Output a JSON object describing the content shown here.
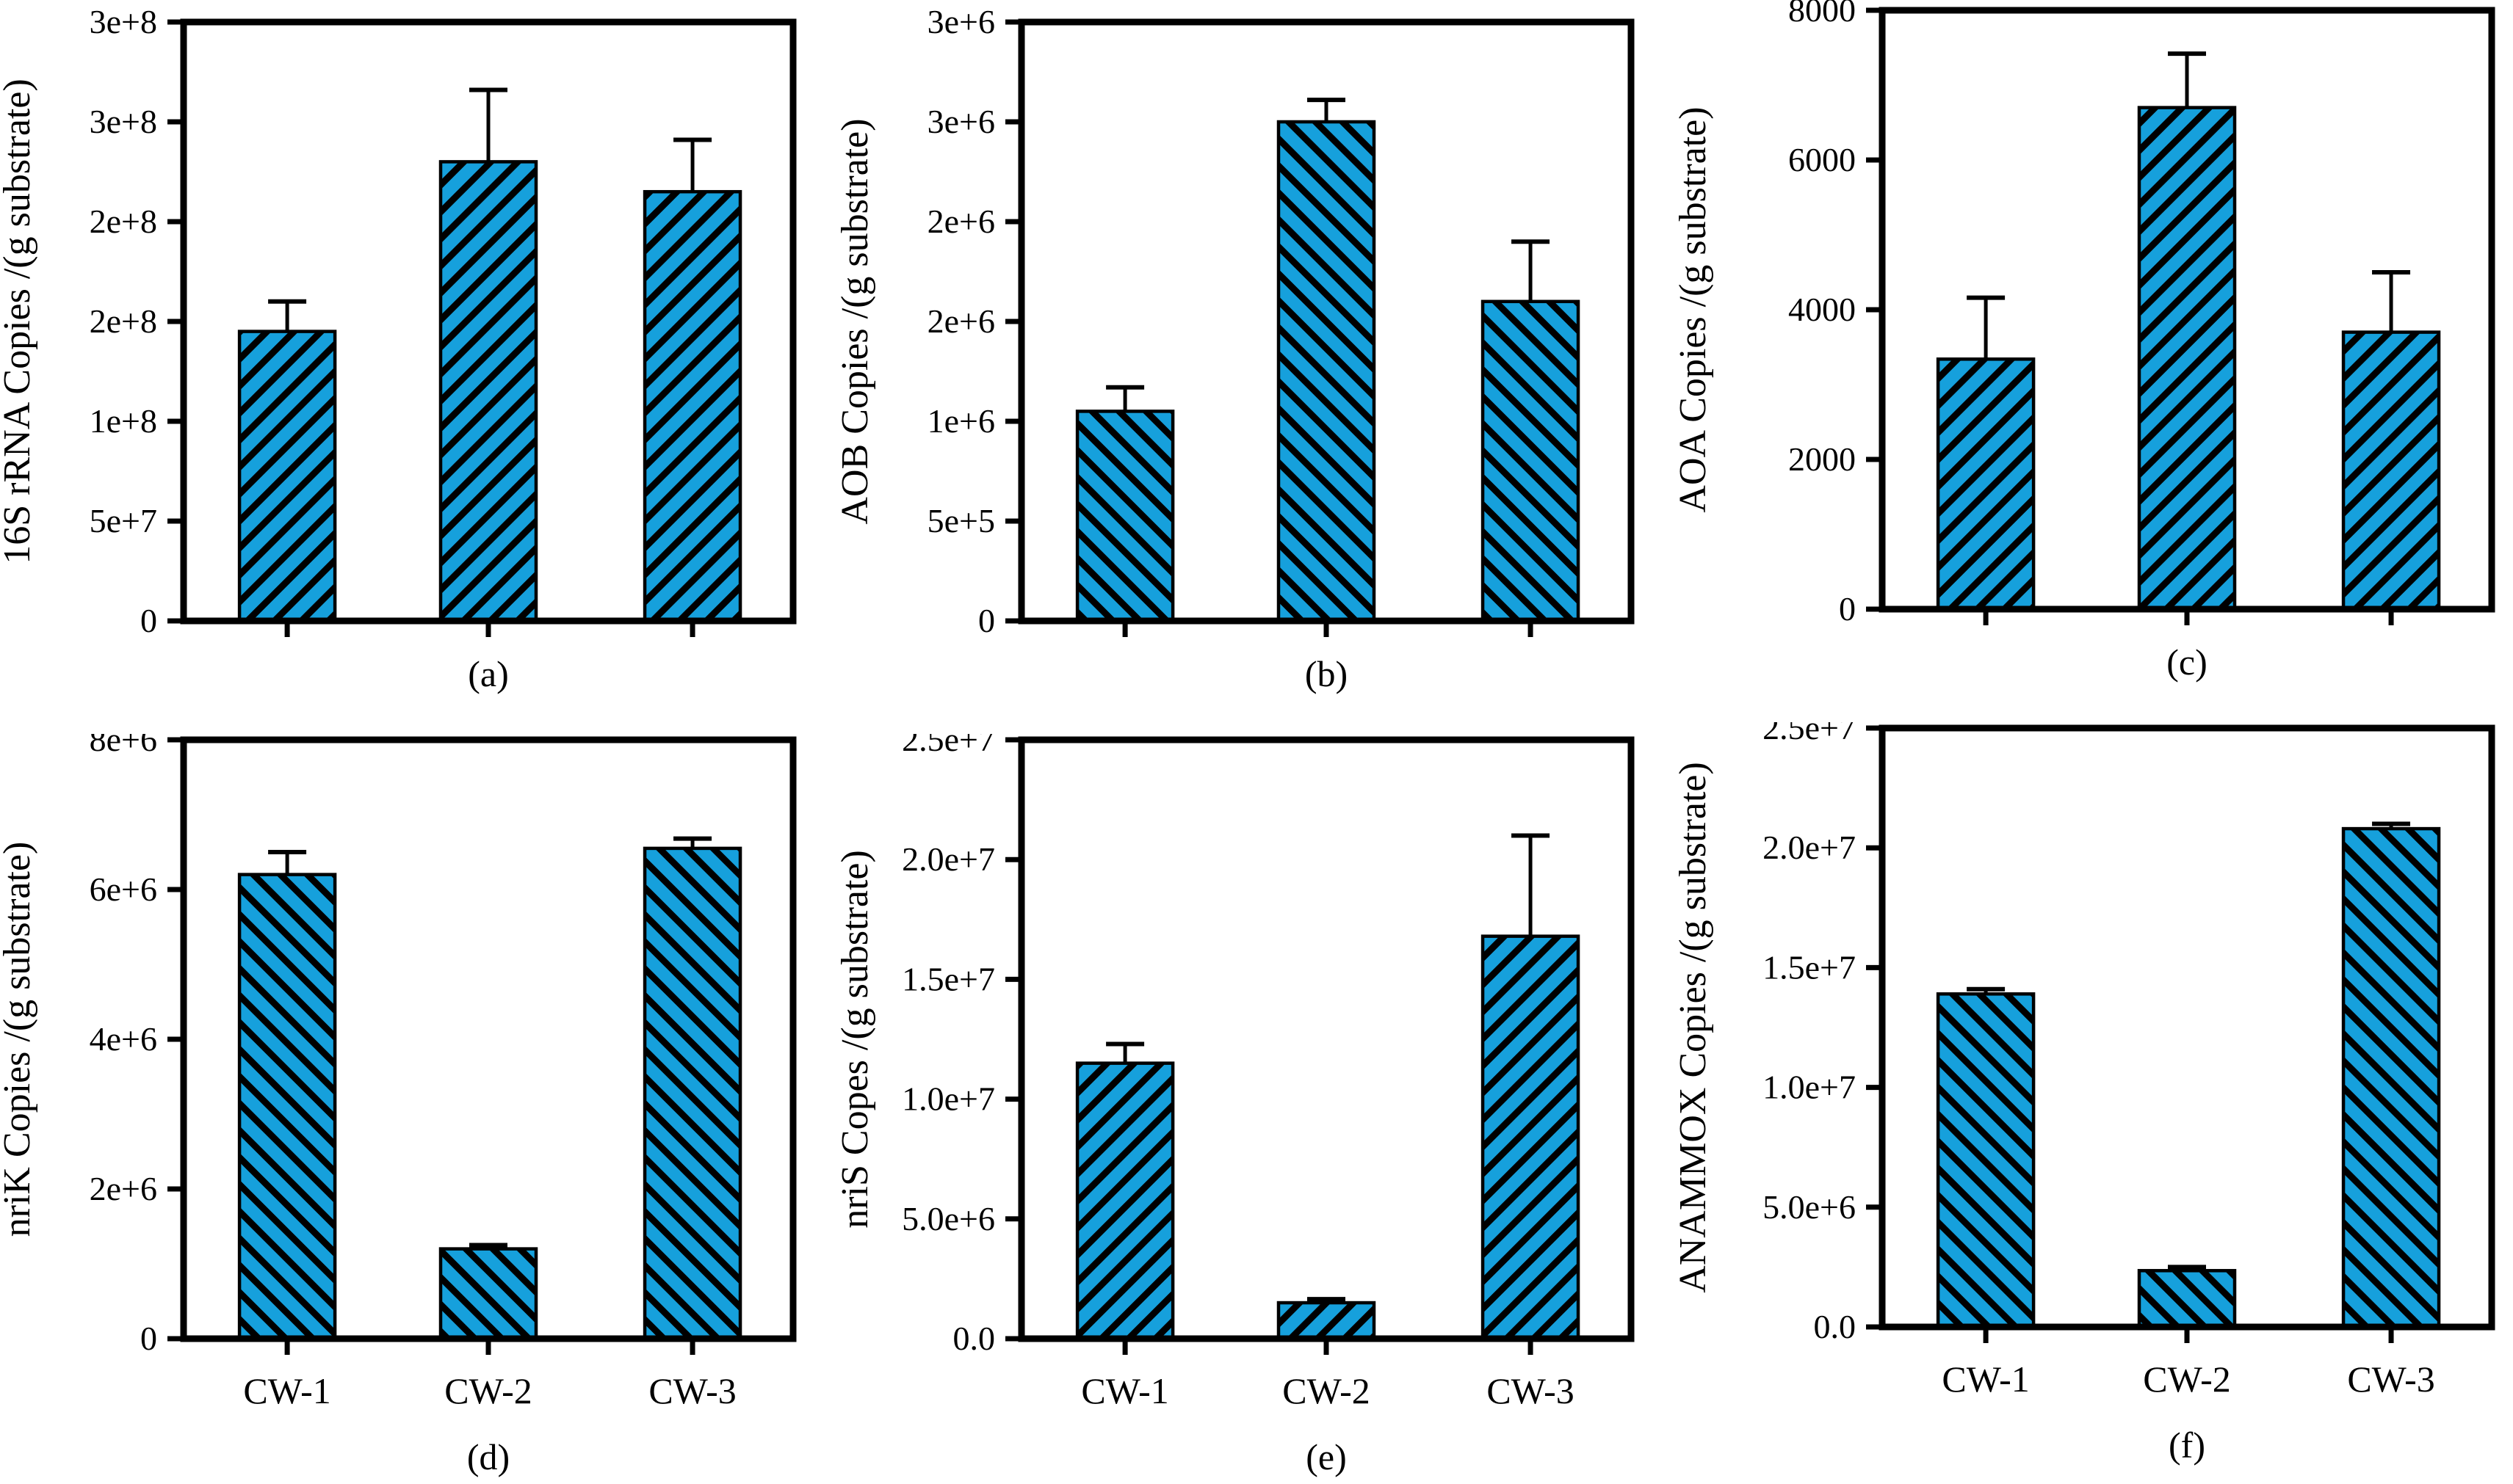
{
  "figure": {
    "description": "Six-panel bar figure of gene copy numbers per gram substrate in three constructed wetlands",
    "categories": [
      "CW-1",
      "CW-2",
      "CW-3"
    ]
  },
  "colors": {
    "bar_fill": "#16a0dc",
    "hatch_line": "#000000",
    "axis": "#000000",
    "background": "#ffffff"
  },
  "chart_data": [
    {
      "type": "bar",
      "panel_label": "(a)",
      "ylabel": "16S rRNA Copies /(g substrate)",
      "categories": [
        "CW-1",
        "CW-2",
        "CW-3"
      ],
      "show_category_labels": false,
      "values": [
        145000000.0,
        230000000.0,
        215000000.0
      ],
      "errors_plus": [
        15000000.0,
        36000000.0,
        26000000.0
      ],
      "ylim": [
        0,
        300000000.0
      ],
      "yticks": [
        0,
        50000000.0,
        100000000.0,
        150000000.0,
        200000000.0,
        250000000.0,
        300000000.0
      ],
      "ytick_labels": [
        "0",
        "5e+7",
        "1e+8",
        "2e+8",
        "2e+8",
        "3e+8",
        "3e+8"
      ],
      "hatch": "/",
      "grid": false,
      "legend": false
    },
    {
      "type": "bar",
      "panel_label": "(b)",
      "ylabel": "AOB Copies /(g substrate)",
      "categories": [
        "CW-1",
        "CW-2",
        "CW-3"
      ],
      "show_category_labels": false,
      "values": [
        1050000.0,
        2500000.0,
        1600000.0
      ],
      "errors_plus": [
        120000.0,
        110000.0,
        300000.0
      ],
      "ylim": [
        0,
        3000000.0
      ],
      "yticks": [
        0,
        500000.0,
        1000000.0,
        1500000.0,
        2000000.0,
        2500000.0,
        3000000.0
      ],
      "ytick_labels": [
        "0",
        "5e+5",
        "1e+6",
        "2e+6",
        "2e+6",
        "3e+6",
        "3e+6"
      ],
      "hatch": "\\",
      "grid": false,
      "legend": false
    },
    {
      "type": "bar",
      "panel_label": "(c)",
      "ylabel": "AOA Copies /(g substrate)",
      "categories": [
        "CW-1",
        "CW-2",
        "CW-3"
      ],
      "show_category_labels": false,
      "values": [
        3340,
        6700,
        3700
      ],
      "errors_plus": [
        820,
        720,
        800
      ],
      "ylim": [
        0,
        8000
      ],
      "yticks": [
        0,
        2000,
        4000,
        6000,
        8000
      ],
      "ytick_labels": [
        "0",
        "2000",
        "4000",
        "6000",
        "8000"
      ],
      "hatch": "/",
      "grid": false,
      "legend": false
    },
    {
      "type": "bar",
      "panel_label": "(d)",
      "ylabel": "nriK Copies /(g substrate)",
      "categories": [
        "CW-1",
        "CW-2",
        "CW-3"
      ],
      "show_category_labels": true,
      "values": [
        6200000.0,
        1200000.0,
        6550000.0
      ],
      "errors_plus": [
        300000.0,
        50000.0,
        130000.0
      ],
      "ylim": [
        0,
        8000000.0
      ],
      "yticks": [
        0,
        2000000.0,
        4000000.0,
        6000000.0,
        8000000.0
      ],
      "ytick_labels": [
        "0",
        "2e+6",
        "4e+6",
        "6e+6",
        "8e+6"
      ],
      "hatch": "\\",
      "grid": false,
      "legend": false
    },
    {
      "type": "bar",
      "panel_label": "(e)",
      "ylabel": "nriS Copes /(g substrate)",
      "categories": [
        "CW-1",
        "CW-2",
        "CW-3"
      ],
      "show_category_labels": true,
      "values": [
        11500000.0,
        1500000.0,
        16800000.0
      ],
      "errors_plus": [
        800000.0,
        150000.0,
        4200000.0
      ],
      "ylim": [
        0,
        25000000.0
      ],
      "yticks": [
        0,
        5000000.0,
        10000000.0,
        15000000.0,
        20000000.0,
        25000000.0
      ],
      "ytick_labels": [
        "0.0",
        "5.0e+6",
        "1.0e+7",
        "1.5e+7",
        "2.0e+7",
        "2.5e+7"
      ],
      "hatch": "/",
      "grid": false,
      "legend": false
    },
    {
      "type": "bar",
      "panel_label": "(f)",
      "ylabel": "ANAMMOX Copies /(g substrate)",
      "categories": [
        "CW-1",
        "CW-2",
        "CW-3"
      ],
      "show_category_labels": true,
      "values": [
        13900000.0,
        2350000.0,
        20800000.0
      ],
      "errors_plus": [
        200000.0,
        150000.0,
        200000.0
      ],
      "ylim": [
        0,
        25000000.0
      ],
      "yticks": [
        0,
        5000000.0,
        10000000.0,
        15000000.0,
        20000000.0,
        25000000.0
      ],
      "ytick_labels": [
        "0.0",
        "5.0e+6",
        "1.0e+7",
        "1.5e+7",
        "2.0e+7",
        "2.5e+7"
      ],
      "hatch": "\\",
      "grid": false,
      "legend": false
    }
  ]
}
